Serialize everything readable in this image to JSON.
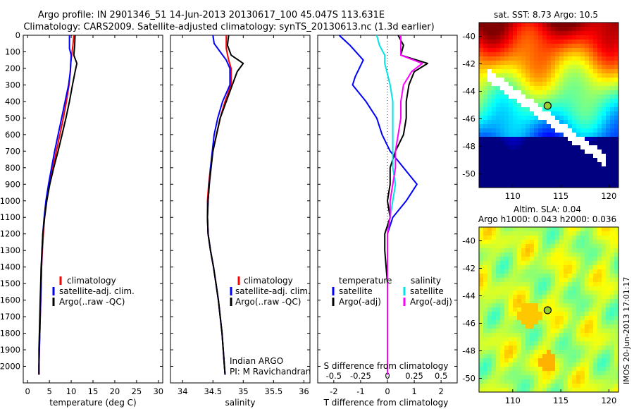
{
  "title": {
    "line1": "Argo profile: IN 2901346_51 14-Jun-2013 20130617_100 45.047S 113.631E",
    "line2": "Climatology: CARS2009. Satellite-adjusted climatology: synTS_20130613.nc (1.3d earlier)"
  },
  "timestamp": "IMOS 20-Jun-2013 17:01:17",
  "colors": {
    "climatology": "#ff0000",
    "satellite": "#0000ff",
    "argo": "#000000",
    "salinity_sat": "#00e5e5",
    "salinity_argo": "#ff00ff"
  },
  "chart_data": [
    {
      "type": "line",
      "name": "temperature",
      "xlabel": "temperature (deg C)",
      "xlim": [
        -1,
        31
      ],
      "xticks": [
        "0",
        "5",
        "10",
        "15",
        "20",
        "25",
        "30"
      ],
      "ylim": [
        2100,
        0
      ],
      "yticks": [
        "0",
        "100",
        "200",
        "300",
        "400",
        "500",
        "600",
        "700",
        "800",
        "900",
        "1000",
        "1100",
        "1200",
        "1300",
        "1400",
        "1500",
        "1600",
        "1700",
        "1800",
        "1900",
        "2000"
      ],
      "legend": [
        "climatology",
        "satellite-adj. clim.",
        "Argo(..raw -QC)"
      ],
      "series": [
        {
          "name": "climatology",
          "color": "#ff0000",
          "points": [
            [
              10.6,
              0
            ],
            [
              10.4,
              60
            ],
            [
              10.1,
              120
            ],
            [
              9.9,
              170
            ],
            [
              9.8,
              220
            ],
            [
              9.5,
              300
            ],
            [
              8.9,
              400
            ],
            [
              8.2,
              500
            ],
            [
              7.4,
              600
            ],
            [
              6.6,
              700
            ],
            [
              5.8,
              800
            ],
            [
              5.0,
              900
            ],
            [
              4.4,
              1000
            ],
            [
              3.9,
              1100
            ],
            [
              3.6,
              1200
            ],
            [
              3.4,
              1300
            ],
            [
              3.2,
              1400
            ],
            [
              3.1,
              1500
            ],
            [
              3.0,
              1600
            ],
            [
              2.9,
              1700
            ],
            [
              2.8,
              1800
            ],
            [
              2.7,
              1900
            ],
            [
              2.6,
              2000
            ],
            [
              2.6,
              2050
            ]
          ]
        },
        {
          "name": "satellite-adj. clim.",
          "color": "#0000ff",
          "points": [
            [
              9.6,
              0
            ],
            [
              9.6,
              80
            ],
            [
              10.0,
              120
            ],
            [
              9.9,
              170
            ],
            [
              9.8,
              220
            ],
            [
              9.4,
              300
            ],
            [
              8.6,
              400
            ],
            [
              7.8,
              500
            ],
            [
              7.0,
              600
            ],
            [
              6.2,
              700
            ],
            [
              5.5,
              800
            ],
            [
              4.8,
              900
            ],
            [
              4.2,
              1000
            ],
            [
              3.8,
              1100
            ],
            [
              3.5,
              1200
            ],
            [
              3.3,
              1300
            ],
            [
              3.2,
              1400
            ],
            [
              3.1,
              1500
            ],
            [
              3.0,
              1600
            ],
            [
              2.9,
              1700
            ],
            [
              2.8,
              1800
            ],
            [
              2.7,
              1900
            ],
            [
              2.6,
              2000
            ],
            [
              2.6,
              2050
            ]
          ]
        },
        {
          "name": "Argo(..raw -QC)",
          "color": "#000000",
          "points": [
            [
              10.9,
              0
            ],
            [
              10.8,
              60
            ],
            [
              10.6,
              120
            ],
            [
              11.3,
              170
            ],
            [
              10.9,
              220
            ],
            [
              10.3,
              300
            ],
            [
              9.6,
              400
            ],
            [
              8.8,
              500
            ],
            [
              7.9,
              600
            ],
            [
              7.0,
              700
            ],
            [
              6.0,
              800
            ],
            [
              5.1,
              900
            ],
            [
              4.4,
              1000
            ],
            [
              3.9,
              1100
            ],
            [
              3.5,
              1200
            ],
            [
              3.3,
              1300
            ],
            [
              3.1,
              1400
            ],
            [
              3.0,
              1500
            ],
            [
              2.9,
              1600
            ],
            [
              2.8,
              1700
            ],
            [
              2.7,
              1800
            ],
            [
              2.6,
              1900
            ],
            [
              2.6,
              2000
            ],
            [
              2.6,
              2050
            ]
          ]
        }
      ]
    },
    {
      "type": "line",
      "name": "salinity",
      "xlabel": "salinity",
      "xlim": [
        33.8,
        36.1
      ],
      "xticks": [
        "34",
        "34.5",
        "35",
        "35.5",
        "36"
      ],
      "ylim": [
        2100,
        0
      ],
      "legend": [
        "climatology",
        "satellite-adj. clim.",
        "Argo(..raw -QC)"
      ],
      "annotation": [
        "Indian ARGO",
        "PI: M Ravichandran"
      ],
      "series": [
        {
          "name": "climatology",
          "color": "#ff0000",
          "points": [
            [
              34.72,
              0
            ],
            [
              34.72,
              80
            ],
            [
              34.76,
              150
            ],
            [
              34.8,
              200
            ],
            [
              34.8,
              300
            ],
            [
              34.7,
              400
            ],
            [
              34.62,
              500
            ],
            [
              34.56,
              600
            ],
            [
              34.5,
              700
            ],
            [
              34.46,
              800
            ],
            [
              34.43,
              900
            ],
            [
              34.41,
              1000
            ],
            [
              34.41,
              1100
            ],
            [
              34.42,
              1200
            ],
            [
              34.46,
              1300
            ],
            [
              34.51,
              1400
            ],
            [
              34.55,
              1500
            ],
            [
              34.59,
              1600
            ],
            [
              34.62,
              1700
            ],
            [
              34.65,
              1800
            ],
            [
              34.67,
              1900
            ],
            [
              34.69,
              2000
            ],
            [
              34.7,
              2050
            ]
          ]
        },
        {
          "name": "satellite-adj. clim.",
          "color": "#0000ff",
          "points": [
            [
              34.5,
              0
            ],
            [
              34.52,
              50
            ],
            [
              34.62,
              100
            ],
            [
              34.72,
              150
            ],
            [
              34.78,
              200
            ],
            [
              34.78,
              300
            ],
            [
              34.66,
              400
            ],
            [
              34.58,
              500
            ],
            [
              34.52,
              600
            ],
            [
              34.49,
              700
            ],
            [
              34.46,
              800
            ],
            [
              34.44,
              900
            ],
            [
              34.42,
              1000
            ],
            [
              34.41,
              1100
            ],
            [
              34.42,
              1200
            ],
            [
              34.46,
              1300
            ],
            [
              34.51,
              1400
            ],
            [
              34.55,
              1500
            ],
            [
              34.59,
              1600
            ],
            [
              34.62,
              1700
            ],
            [
              34.65,
              1800
            ],
            [
              34.67,
              1900
            ],
            [
              34.69,
              2000
            ],
            [
              34.7,
              2050
            ]
          ]
        },
        {
          "name": "Argo(..raw -QC)",
          "color": "#000000",
          "points": [
            [
              34.76,
              0
            ],
            [
              34.74,
              60
            ],
            [
              34.8,
              120
            ],
            [
              35.0,
              170
            ],
            [
              34.9,
              220
            ],
            [
              34.82,
              300
            ],
            [
              34.72,
              400
            ],
            [
              34.62,
              500
            ],
            [
              34.56,
              600
            ],
            [
              34.5,
              700
            ],
            [
              34.47,
              800
            ],
            [
              34.44,
              900
            ],
            [
              34.42,
              1000
            ],
            [
              34.41,
              1100
            ],
            [
              34.42,
              1200
            ],
            [
              34.46,
              1300
            ],
            [
              34.51,
              1400
            ],
            [
              34.55,
              1500
            ],
            [
              34.59,
              1600
            ],
            [
              34.62,
              1700
            ],
            [
              34.65,
              1800
            ],
            [
              34.67,
              1900
            ],
            [
              34.69,
              2000
            ],
            [
              34.7,
              2050
            ]
          ]
        }
      ]
    },
    {
      "type": "line",
      "name": "difference",
      "xlabel": "T difference from climatology",
      "xlabel_top": "S difference from climatology",
      "xlim": [
        -2.6,
        2.6
      ],
      "xticks": [
        "-2",
        "-1",
        "0",
        "1",
        "2"
      ],
      "xticks_top": [
        "-0.5",
        "-0.25",
        "0",
        "0.25",
        "0.5"
      ],
      "ylim": [
        2100,
        0
      ],
      "legend_left_title": "temperature",
      "legend_right_title": "salinity",
      "legend_left": [
        "satellite",
        "Argo(-adj)"
      ],
      "legend_right": [
        "satellite",
        "Argo(-adj)"
      ],
      "series": [
        {
          "name": "T satellite",
          "color": "#0000ff",
          "points": [
            [
              -1.8,
              0
            ],
            [
              -1.4,
              60
            ],
            [
              -0.9,
              150
            ],
            [
              -1.2,
              250
            ],
            [
              -1.3,
              300
            ],
            [
              -0.8,
              400
            ],
            [
              -0.4,
              500
            ],
            [
              -0.2,
              600
            ],
            [
              0.1,
              700
            ],
            [
              0.6,
              800
            ],
            [
              1.1,
              900
            ],
            [
              0.7,
              1000
            ],
            [
              0.2,
              1100
            ],
            [
              0,
              1200
            ],
            [
              0,
              1300
            ],
            [
              0,
              1600
            ],
            [
              0,
              2050
            ]
          ]
        },
        {
          "name": "T Argo(-adj)",
          "color": "#000000",
          "points": [
            [
              0.4,
              0
            ],
            [
              0.6,
              60
            ],
            [
              0.5,
              120
            ],
            [
              1.5,
              170
            ],
            [
              1.0,
              220
            ],
            [
              0.8,
              300
            ],
            [
              0.7,
              400
            ],
            [
              0.7,
              500
            ],
            [
              0.6,
              600
            ],
            [
              0.3,
              700
            ],
            [
              0.1,
              800
            ],
            [
              0.1,
              900
            ],
            [
              0,
              1000
            ],
            [
              0.1,
              1100
            ],
            [
              -0.1,
              1200
            ],
            [
              -0.1,
              1300
            ],
            [
              0,
              1500
            ],
            [
              0,
              2050
            ]
          ]
        },
        {
          "name": "S satellite",
          "color": "#00e5e5",
          "points": [
            [
              -0.4,
              0
            ],
            [
              -0.3,
              60
            ],
            [
              -0.1,
              120
            ],
            [
              -0.1,
              170
            ],
            [
              0.1,
              300
            ],
            [
              0.2,
              400
            ],
            [
              0.2,
              600
            ],
            [
              0.2,
              700
            ],
            [
              0.2,
              800
            ],
            [
              0.3,
              900
            ],
            [
              0.2,
              1000
            ],
            [
              0.1,
              1100
            ],
            [
              0,
              1200
            ],
            [
              0,
              1300
            ],
            [
              0,
              2050
            ]
          ]
        },
        {
          "name": "S Argo(-adj)",
          "color": "#ff00ff",
          "points": [
            [
              0.5,
              0
            ],
            [
              0.5,
              60
            ],
            [
              0.5,
              120
            ],
            [
              1.3,
              170
            ],
            [
              0.9,
              220
            ],
            [
              0.6,
              300
            ],
            [
              0.5,
              400
            ],
            [
              0.5,
              500
            ],
            [
              0.4,
              600
            ],
            [
              0.3,
              700
            ],
            [
              0.3,
              800
            ],
            [
              0.2,
              900
            ],
            [
              0.1,
              1000
            ],
            [
              0.1,
              1100
            ],
            [
              0,
              1200
            ],
            [
              0,
              1300
            ],
            [
              0,
              2050
            ]
          ]
        }
      ]
    },
    {
      "type": "heatmap",
      "name": "sst-map",
      "title": "sat. SST: 8.73 Argo: 10.5",
      "xlim": [
        106.5,
        121
      ],
      "ylim": [
        -51,
        -39
      ],
      "xticks": [
        "110",
        "115",
        "120"
      ],
      "yticks": [
        "-40",
        "-42",
        "-44",
        "-46",
        "-48",
        "-50"
      ],
      "marker": [
        113.63,
        -45.05
      ]
    },
    {
      "type": "heatmap",
      "name": "sla-map",
      "title": "Altim. SLA: 0.04",
      "subtitle": "Argo h1000: 0.043 h2000: 0.036",
      "xlim": [
        106.5,
        121
      ],
      "ylim": [
        -51,
        -39
      ],
      "xticks": [
        "110",
        "115",
        "120"
      ],
      "yticks": [
        "-40",
        "-42",
        "-44",
        "-46",
        "-48",
        "-50"
      ],
      "marker": [
        113.63,
        -45.05
      ]
    }
  ]
}
